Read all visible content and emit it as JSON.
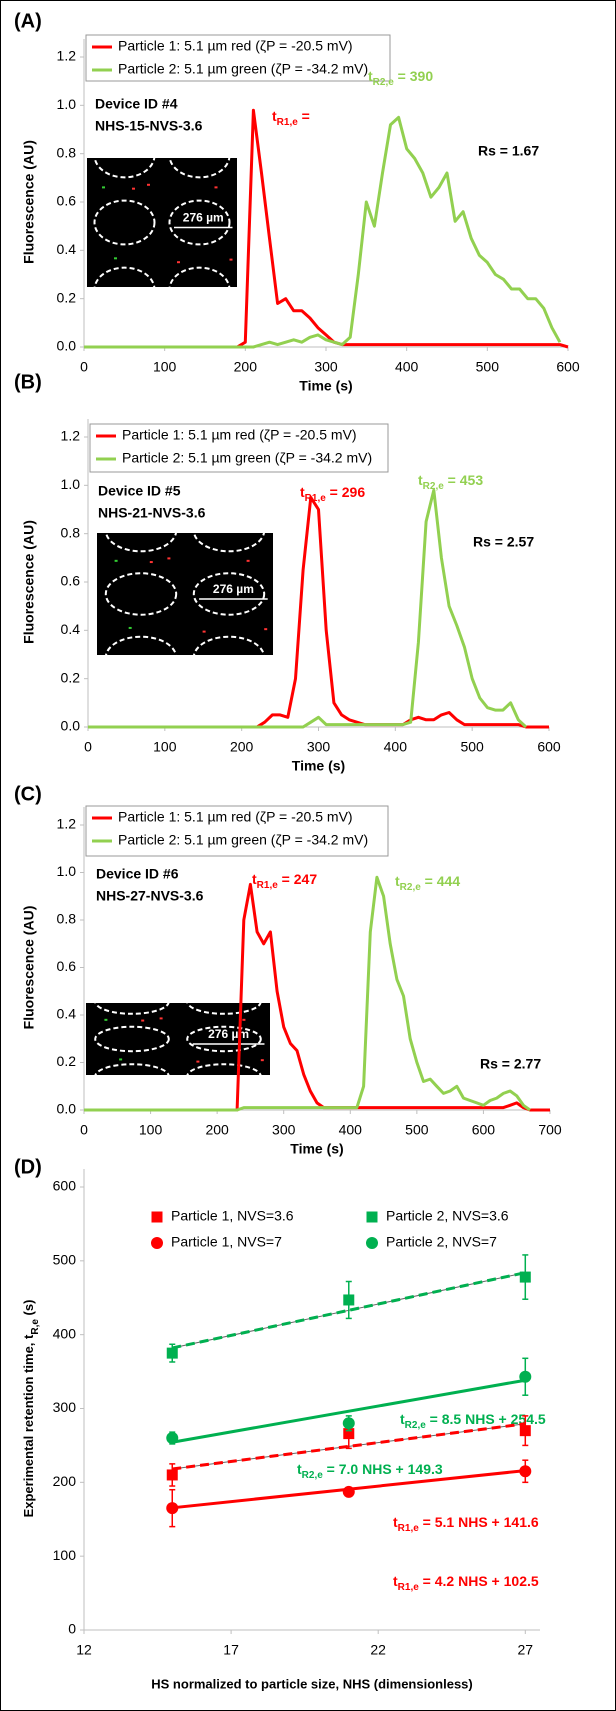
{
  "chart_data": [
    {
      "type": "line",
      "panel": "(A)",
      "xlabel": "Time (s)",
      "ylabel": "Fluorescence (AU)",
      "device": [
        "Device ID #4",
        "NHS-15-NVS-3.6"
      ],
      "rs": "Rs = 1.67",
      "inset_label": "276 µm",
      "xlim": [
        0,
        600
      ],
      "xticks": [
        0,
        100,
        200,
        300,
        400,
        500,
        600
      ],
      "ylim": [
        0,
        1.2
      ],
      "yticks": [
        {
          "value": 0,
          "label": "0.0"
        },
        {
          "value": 0.2,
          "label": "0.2"
        },
        {
          "value": 0.4,
          "label": "0.4"
        },
        {
          "value": 0.6,
          "label": "0.6"
        },
        {
          "value": 0.8,
          "label": "0.8"
        },
        {
          "value": 1,
          "label": "1.0"
        },
        {
          "value": 1.2,
          "label": "1.2"
        }
      ],
      "x": [
        0,
        10,
        20,
        30,
        40,
        50,
        60,
        70,
        80,
        90,
        100,
        110,
        120,
        130,
        140,
        150,
        160,
        170,
        180,
        190,
        200,
        210,
        220,
        230,
        240,
        250,
        260,
        270,
        280,
        290,
        300,
        310,
        320,
        330,
        340,
        350,
        360,
        370,
        380,
        390,
        400,
        410,
        420,
        430,
        440,
        450,
        460,
        470,
        480,
        490,
        500,
        510,
        520,
        530,
        540,
        550,
        560,
        570,
        580,
        590,
        600
      ],
      "series": [
        {
          "name": "Particle 1: 5.1 µm red (ζP = -20.5 mV)",
          "color": "#ff0000",
          "values": [
            0,
            0,
            0,
            0,
            0,
            0,
            0,
            0,
            0,
            0,
            0,
            0,
            0,
            0,
            0,
            0,
            0,
            0,
            0,
            0,
            0.02,
            0.98,
            0.72,
            0.45,
            0.18,
            0.2,
            0.15,
            0.15,
            0.12,
            0.08,
            0.05,
            0.02,
            0.01,
            0.01,
            0.01,
            0.01,
            0.01,
            0.01,
            0.01,
            0.01,
            0.01,
            0.01,
            0.01,
            0.01,
            0.01,
            0.01,
            0.01,
            0.01,
            0.01,
            0.01,
            0.01,
            0.01,
            0.01,
            0.01,
            0.01,
            0.01,
            0.01,
            0.01,
            0.01,
            0.01,
            0
          ]
        },
        {
          "name": "Particle 2: 5.1 µm green (ζP = -34.2 mV)",
          "color": "#92d050",
          "values": [
            0,
            0,
            0,
            0,
            0,
            0,
            0,
            0,
            0,
            0,
            0,
            0,
            0,
            0,
            0,
            0,
            0,
            0,
            0,
            0,
            0,
            0,
            0.01,
            0.02,
            0.01,
            0.02,
            0.03,
            0.02,
            0.04,
            0.05,
            0.03,
            0.02,
            0.01,
            0.04,
            0.3,
            0.6,
            0.5,
            0.72,
            0.92,
            0.95,
            0.82,
            0.78,
            0.72,
            0.62,
            0.66,
            0.72,
            0.52,
            0.56,
            0.45,
            0.38,
            0.35,
            0.3,
            0.28,
            0.24,
            0.24,
            0.2,
            0.2,
            0.16,
            0.08,
            0.02,
            null
          ]
        }
      ],
      "annotations": [
        {
          "text": "t",
          "sub": "R1,e",
          "tail": " =",
          "color": "#ff0000"
        },
        {
          "text": "t",
          "sub": "R2,e",
          "tail": " = 390",
          "color": "#92d050"
        }
      ]
    },
    {
      "type": "line",
      "panel": "(B)",
      "xlabel": "Time (s)",
      "ylabel": "Fluorescence (AU)",
      "device": [
        "Device ID #5",
        "NHS-21-NVS-3.6"
      ],
      "rs": "Rs = 2.57",
      "inset_label": "276 µm",
      "xlim": [
        0,
        600
      ],
      "xticks": [
        0,
        100,
        200,
        300,
        400,
        500,
        600
      ],
      "ylim": [
        0,
        1.2
      ],
      "yticks": [
        {
          "value": 0,
          "label": "0.0"
        },
        {
          "value": 0.2,
          "label": "0.2"
        },
        {
          "value": 0.4,
          "label": "0.4"
        },
        {
          "value": 0.6,
          "label": "0.6"
        },
        {
          "value": 0.8,
          "label": "0.8"
        },
        {
          "value": 1,
          "label": "1.0"
        },
        {
          "value": 1.2,
          "label": "1.2"
        }
      ],
      "x": [
        0,
        10,
        20,
        30,
        40,
        50,
        60,
        70,
        80,
        90,
        100,
        110,
        120,
        130,
        140,
        150,
        160,
        170,
        180,
        190,
        200,
        210,
        220,
        230,
        240,
        250,
        260,
        270,
        280,
        290,
        300,
        310,
        320,
        330,
        340,
        350,
        360,
        370,
        380,
        390,
        400,
        410,
        420,
        430,
        440,
        450,
        460,
        470,
        480,
        490,
        500,
        510,
        520,
        530,
        540,
        550,
        560,
        570,
        580,
        590,
        600
      ],
      "series": [
        {
          "name": "Particle 1: 5.1 µm red (ζP = -20.5 mV)",
          "color": "#ff0000",
          "values": [
            0,
            0,
            0,
            0,
            0,
            0,
            0,
            0,
            0,
            0,
            0,
            0,
            0,
            0,
            0,
            0,
            0,
            0,
            0,
            0,
            0,
            0,
            0,
            0.02,
            0.05,
            0.05,
            0.04,
            0.2,
            0.65,
            0.95,
            0.9,
            0.4,
            0.1,
            0.05,
            0.03,
            0.02,
            0.01,
            0.01,
            0.01,
            0.01,
            0.01,
            0.01,
            0.03,
            0.04,
            0.03,
            0.03,
            0.05,
            0.06,
            0.03,
            0.01,
            0.01,
            0.01,
            0.01,
            0.01,
            0.01,
            0.01,
            0.01,
            0,
            0,
            0,
            0
          ]
        },
        {
          "name": "Particle 2: 5.1 µm green (ζP = -34.2 mV)",
          "color": "#92d050",
          "values": [
            0,
            0,
            0,
            0,
            0,
            0,
            0,
            0,
            0,
            0,
            0,
            0,
            0,
            0,
            0,
            0,
            0,
            0,
            0,
            0,
            0,
            0,
            0,
            0,
            0,
            0,
            0,
            0,
            0,
            0.02,
            0.04,
            0.01,
            0.01,
            0.01,
            0.01,
            0.01,
            0.01,
            0.01,
            0.01,
            0.01,
            0.01,
            0.01,
            0.02,
            0.35,
            0.85,
            0.98,
            0.7,
            0.5,
            0.42,
            0.33,
            0.2,
            0.12,
            0.08,
            0.07,
            0.07,
            0.1,
            0.03,
            0,
            null,
            null,
            null
          ]
        }
      ],
      "annotations": [
        {
          "text": "t",
          "sub": "R1,e",
          "tail": " = 296",
          "color": "#ff0000"
        },
        {
          "text": "t",
          "sub": "R2,e",
          "tail": " = 453",
          "color": "#92d050"
        }
      ]
    },
    {
      "type": "line",
      "panel": "(C)",
      "xlabel": "Time (s)",
      "ylabel": "Fluorescence (AU)",
      "device": [
        "Device ID #6",
        "NHS-27-NVS-3.6"
      ],
      "rs": "Rs = 2.77",
      "inset_label": "276 µm",
      "xlim": [
        0,
        700
      ],
      "xticks": [
        0,
        100,
        200,
        300,
        400,
        500,
        600,
        700
      ],
      "ylim": [
        0,
        1.2
      ],
      "yticks": [
        {
          "value": 0,
          "label": "0.0"
        },
        {
          "value": 0.2,
          "label": "0.2"
        },
        {
          "value": 0.4,
          "label": "0.4"
        },
        {
          "value": 0.6,
          "label": "0.6"
        },
        {
          "value": 0.8,
          "label": "0.8"
        },
        {
          "value": 1,
          "label": "1.0"
        },
        {
          "value": 1.2,
          "label": "1.2"
        }
      ],
      "x": [
        0,
        10,
        20,
        30,
        40,
        50,
        60,
        70,
        80,
        90,
        100,
        110,
        120,
        130,
        140,
        150,
        160,
        170,
        180,
        190,
        200,
        210,
        220,
        230,
        240,
        250,
        260,
        270,
        280,
        290,
        300,
        310,
        320,
        330,
        340,
        350,
        360,
        370,
        380,
        390,
        400,
        410,
        420,
        430,
        440,
        450,
        460,
        470,
        480,
        490,
        500,
        510,
        520,
        530,
        540,
        550,
        560,
        570,
        580,
        590,
        600,
        610,
        620,
        630,
        640,
        650,
        660,
        670,
        680,
        690,
        700
      ],
      "series": [
        {
          "name": "Particle 1: 5.1 µm red (ζP = -20.5 mV)",
          "color": "#ff0000",
          "values": [
            0,
            0,
            0,
            0,
            0,
            0,
            0,
            0,
            0,
            0,
            0,
            0,
            0,
            0,
            0,
            0,
            0,
            0,
            0,
            0,
            0,
            0,
            0,
            0,
            0.8,
            0.95,
            0.75,
            0.7,
            0.75,
            0.5,
            0.35,
            0.28,
            0.25,
            0.15,
            0.08,
            0.03,
            0.01,
            0.01,
            0.01,
            0.01,
            0.01,
            0.01,
            0.01,
            0.01,
            0.01,
            0.01,
            0.01,
            0.01,
            0.01,
            0.01,
            0.01,
            0.01,
            0.01,
            0.01,
            0.01,
            0.01,
            0.01,
            0.01,
            0.01,
            0.01,
            0.01,
            0.01,
            0.01,
            0.01,
            0.02,
            0.03,
            0.01,
            0,
            0,
            0,
            0
          ]
        },
        {
          "name": "Particle 2: 5.1 µm green (ζP = -34.2 mV)",
          "color": "#92d050",
          "values": [
            0,
            0,
            0,
            0,
            0,
            0,
            0,
            0,
            0,
            0,
            0,
            0,
            0,
            0,
            0,
            0,
            0,
            0,
            0,
            0,
            0,
            0,
            0,
            0,
            0.01,
            0.01,
            0.01,
            0.01,
            0.01,
            0.01,
            0.01,
            0.01,
            0.01,
            0.01,
            0.01,
            0.01,
            0.01,
            0.01,
            0.01,
            0.01,
            0.01,
            0.01,
            0.1,
            0.75,
            0.98,
            0.9,
            0.7,
            0.55,
            0.48,
            0.3,
            0.2,
            0.12,
            0.13,
            0.1,
            0.07,
            0.08,
            0.1,
            0.05,
            0.04,
            0.03,
            0.02,
            0.04,
            0.05,
            0.07,
            0.08,
            0.06,
            0.02,
            0,
            null,
            null,
            null
          ]
        }
      ],
      "annotations": [
        {
          "text": "t",
          "sub": "R1,e",
          "tail": " = 247",
          "color": "#ff0000"
        },
        {
          "text": "t",
          "sub": "R2,e",
          "tail": " = 444",
          "color": "#92d050"
        }
      ]
    },
    {
      "type": "scatter",
      "panel": "(D)",
      "xlabel": "HS normalized to particle size, NHS (dimensionless)",
      "ylabel": "Experimental  retention time, t",
      "ylabel_sub": "R,e",
      "ylabel_tail": " (s)",
      "xlim": [
        12,
        27.5
      ],
      "xticks": [
        12,
        17,
        22,
        27
      ],
      "ylim": [
        0,
        600
      ],
      "yticks": [
        0,
        100,
        200,
        300,
        400,
        500,
        600
      ],
      "series": [
        {
          "name": "Particle 1, NVS=3.6",
          "color": "#ff0000",
          "marker": "square",
          "x": [
            15,
            21,
            27
          ],
          "values": [
            210,
            266,
            270
          ],
          "errors": [
            15,
            20,
            20
          ]
        },
        {
          "name": "Particle 2, NVS=3.6",
          "color": "#00b050",
          "marker": "square",
          "x": [
            15,
            21,
            27
          ],
          "values": [
            375,
            447,
            478
          ],
          "errors": [
            12,
            25,
            30
          ]
        },
        {
          "name": "Particle 1, NVS=7",
          "color": "#ff0000",
          "marker": "circle",
          "x": [
            15,
            21,
            27
          ],
          "values": [
            165,
            187,
            215
          ],
          "errors": [
            25,
            5,
            15
          ]
        },
        {
          "name": "Particle 2, NVS=7",
          "color": "#00b050",
          "marker": "circle",
          "x": [
            15,
            21,
            27
          ],
          "values": [
            260,
            280,
            343
          ],
          "errors": [
            8,
            10,
            25
          ]
        }
      ],
      "fits": [
        {
          "series": 1,
          "slope": 8.5,
          "intercept": 254.5,
          "dashed": true,
          "text": "t",
          "sub": "R2,e",
          "tail": " = 8.5 NHS + 254.5"
        },
        {
          "series": 3,
          "slope": 7.0,
          "intercept": 149.3,
          "dashed": false,
          "text": "t",
          "sub": "R2,e",
          "tail": " = 7.0 NHS + 149.3"
        },
        {
          "series": 0,
          "slope": 5.1,
          "intercept": 141.6,
          "dashed": true,
          "text": "t",
          "sub": "R1,e",
          "tail": " = 5.1 NHS + 141.6"
        },
        {
          "series": 2,
          "slope": 4.2,
          "intercept": 102.5,
          "dashed": false,
          "text": "t",
          "sub": "R1,e",
          "tail": " = 4.2 NHS + 102.5"
        }
      ]
    }
  ]
}
